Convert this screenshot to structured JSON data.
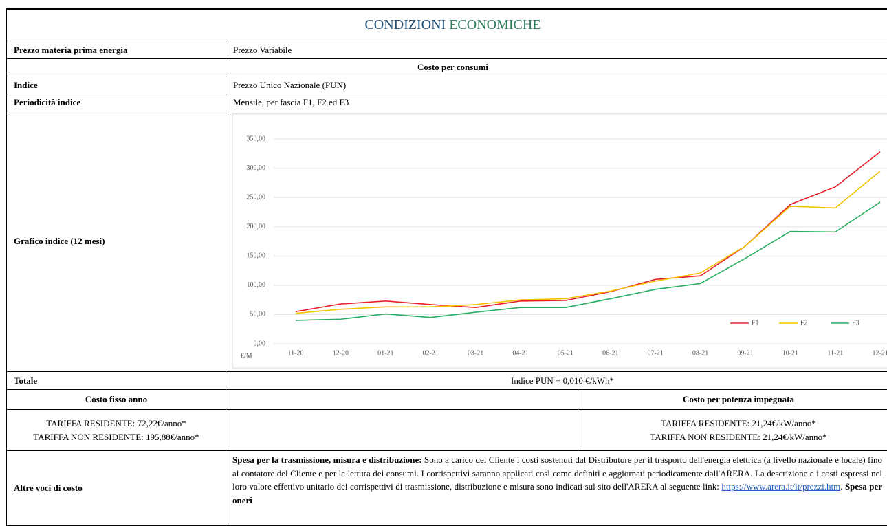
{
  "title_parts": [
    "CONDIZIONI",
    "ECONOMICHE"
  ],
  "price_row": {
    "label": "Prezzo materia prima energia",
    "value": "Prezzo Variabile"
  },
  "section": "Costo per consumi",
  "index_row": {
    "label": "Indice",
    "value": "Prezzo Unico Nazionale (PUN)"
  },
  "periodicity_row": {
    "label": "Periodicità indice",
    "value": "Mensile, per fascia F1, F2 ed F3"
  },
  "chart_row": {
    "label": "Grafico indice (12 mesi)"
  },
  "chart_data": {
    "type": "line",
    "categories": [
      "11-20",
      "12-20",
      "01-21",
      "02-21",
      "03-21",
      "04-21",
      "05-21",
      "06-21",
      "07-21",
      "08-21",
      "09-21",
      "10-21",
      "11-21",
      "12-21"
    ],
    "series": [
      {
        "name": "F1",
        "color": "#e8202a",
        "values": [
          55,
          68,
          73,
          67,
          62,
          73,
          74,
          89,
          110,
          116,
          167,
          238,
          268,
          328
        ]
      },
      {
        "name": "F2",
        "color": "#f5c200",
        "values": [
          52,
          59,
          63,
          63,
          67,
          75,
          77,
          90,
          107,
          121,
          167,
          235,
          232,
          295
        ]
      },
      {
        "name": "F3",
        "color": "#27ae60",
        "values": [
          40,
          42,
          51,
          45,
          54,
          62,
          62,
          77,
          93,
          103,
          146,
          192,
          191,
          242
        ]
      }
    ],
    "y_label": "€/M",
    "ylim": [
      0,
      350
    ],
    "yticks": [
      {
        "value": 0,
        "label": "0,00"
      },
      {
        "value": 50,
        "label": "50,00"
      },
      {
        "value": 100,
        "label": "100,00"
      },
      {
        "value": 150,
        "label": "150,00"
      },
      {
        "value": 200,
        "label": "200,00"
      },
      {
        "value": 250,
        "label": "250,00"
      },
      {
        "value": 300,
        "label": "300,00"
      },
      {
        "value": 350,
        "label": "350,00"
      }
    ],
    "grid": true,
    "legend": "lower right"
  },
  "total_row": {
    "label": "Totale",
    "value": "Indice PUN + 0,010 €/kWh*"
  },
  "fixed_cost": {
    "header": "Costo fisso anno",
    "lines": [
      "TARIFFA RESIDENTE: 72,22€/anno*",
      "TARIFFA NON RESIDENTE: 195,88€/anno*"
    ]
  },
  "power_cost": {
    "header": "Costo per potenza impegnata",
    "lines": [
      "TARIFFA RESIDENTE: 21,24€/kW/anno*",
      "TARIFFA NON RESIDENTE: 21,24€/kW/anno*"
    ]
  },
  "other_costs": {
    "label": "Altre voci di costo",
    "parts": [
      {
        "text": "Spesa per la trasmissione, misura e distribuzione:",
        "bold": true
      },
      {
        "text": " Sono a carico del Cliente i costi sostenuti dal Distributore per il trasporto dell'energia elettrica (a livello nazionale e locale) fino al contatore del Cliente e per la lettura dei consumi. I corrispettivi saranno applicati così come definiti e aggiornati periodicamente dall'ARERA. La descrizione e i costi espressi nel loro valore effettivo unitario dei corrispettivi di trasmissione, distribuzione e misura sono indicati sul sito dell'ARERA al seguente link: "
      },
      {
        "text": "https://www.arera.it/it/prezzi.htm",
        "link": true
      },
      {
        "text": ". "
      },
      {
        "text": "Spesa per oneri",
        "bold": true
      }
    ]
  }
}
